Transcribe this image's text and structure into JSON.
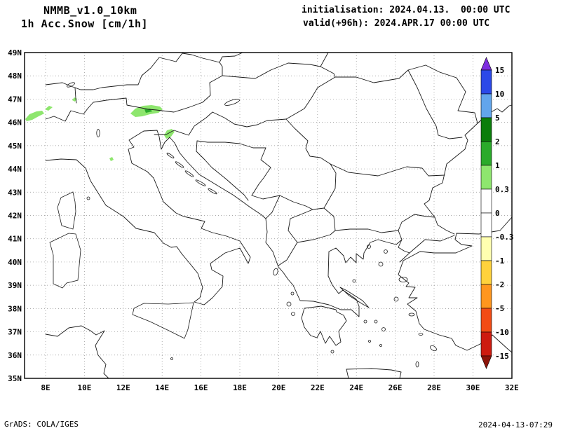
{
  "header": {
    "model": "NMMB_v1.0_10km",
    "variable": "1h Acc.Snow [cm/1h]",
    "init_label": "initialisation: 2024.04.13.  00:00 UTC",
    "valid_label": "valid(+96h): 2024.APR.17 00:00 UTC"
  },
  "footer": {
    "credit": "GrADS: COLA/IGES",
    "generated": "2024-04-13-07:29"
  },
  "axes": {
    "lat_ticks": [
      "49N",
      "48N",
      "47N",
      "46N",
      "45N",
      "44N",
      "43N",
      "42N",
      "41N",
      "40N",
      "39N",
      "38N",
      "37N",
      "36N",
      "35N"
    ],
    "lon_ticks": [
      "8E",
      "10E",
      "12E",
      "14E",
      "16E",
      "18E",
      "20E",
      "22E",
      "24E",
      "26E",
      "28E",
      "30E",
      "32E"
    ]
  },
  "colorbar": {
    "tick_labels": [
      "15",
      "10",
      "5",
      "2",
      "1",
      "0.3",
      "0",
      "-0.3",
      "-1",
      "-2",
      "-5",
      "-10",
      "-15"
    ],
    "band_colors_top_to_bottom": [
      "#7e2ee0",
      "#2b49e8",
      "#62a5ec",
      "#0a7d0a",
      "#2aaa2a",
      "#8ee66e",
      "#ffffff",
      "#ffffff",
      "#ffffb0",
      "#ffd23c",
      "#ff961e",
      "#f24b14",
      "#cd1b10",
      "#8c140a"
    ]
  },
  "chart_data": {
    "type": "map-contour",
    "title": "1h Acc.Snow [cm/1h]",
    "model_run": "NMMB_v1.0_10km, init 2024.04.13 00:00 UTC, valid +96h 2024.APR.17 00:00 UTC",
    "region_extent": {
      "lon_e": [
        8,
        32
      ],
      "lat_n": [
        35,
        49
      ]
    },
    "contour_levels_cm": [
      -15,
      -10,
      -5,
      -2,
      -1,
      -0.3,
      0,
      0.3,
      1,
      2,
      5,
      10,
      15
    ],
    "snow_areas": [
      {
        "region": "Western Alps (Valais)",
        "lon_e": 7.9,
        "lat_n": 46.1,
        "band_cm": "0.3-1"
      },
      {
        "region": "Eastern Swiss Alps",
        "lon_e": 9.4,
        "lat_n": 47.0,
        "band_cm": "0.3-1"
      },
      {
        "region": "Julian Alps / Karavanke (Slovenia-Austria)",
        "lon_e": 13.6,
        "lat_n": 46.4,
        "band_cm": "0.3-2"
      },
      {
        "region": "Gorski Kotar (Croatia)",
        "lon_e": 14.6,
        "lat_n": 45.4,
        "band_cm": "0.3-1"
      },
      {
        "region": "Northern Apennines",
        "lon_e": 11.4,
        "lat_n": 44.4,
        "band_cm": "0.3-1"
      }
    ]
  }
}
